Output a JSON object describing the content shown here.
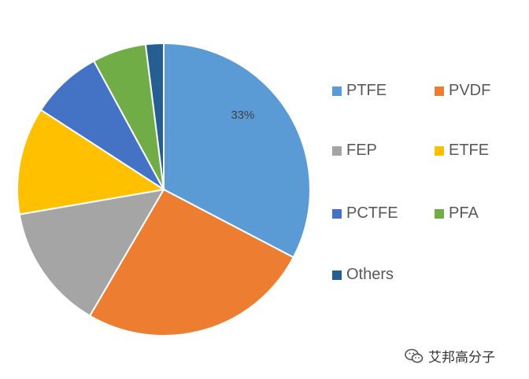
{
  "chart_data": {
    "type": "pie",
    "categories": [
      "PTFE",
      "PVDF",
      "FEP",
      "ETFE",
      "PCTFE",
      "PFA",
      "Others"
    ],
    "values": [
      33,
      26,
      14,
      12,
      8,
      6,
      2
    ],
    "colors": [
      "#5b9bd5",
      "#ed7d31",
      "#a5a5a5",
      "#ffc000",
      "#4472c4",
      "#70ad47",
      "#255e91"
    ],
    "data_labels": [
      {
        "category": "PTFE",
        "text": "33%"
      }
    ],
    "legend_placement": "right"
  },
  "legend": {
    "items": [
      {
        "label": "PTFE",
        "color": "#5b9bd5"
      },
      {
        "label": "PVDF",
        "color": "#ed7d31"
      },
      {
        "label": "FEP",
        "color": "#a5a5a5"
      },
      {
        "label": "ETFE",
        "color": "#ffc000"
      },
      {
        "label": "PCTFE",
        "color": "#4472c4"
      },
      {
        "label": "PFA",
        "color": "#70ad47"
      },
      {
        "label": "Others",
        "color": "#255e91"
      }
    ]
  },
  "watermark": {
    "icon": "wechat-icon",
    "text": "艾邦高分子"
  }
}
